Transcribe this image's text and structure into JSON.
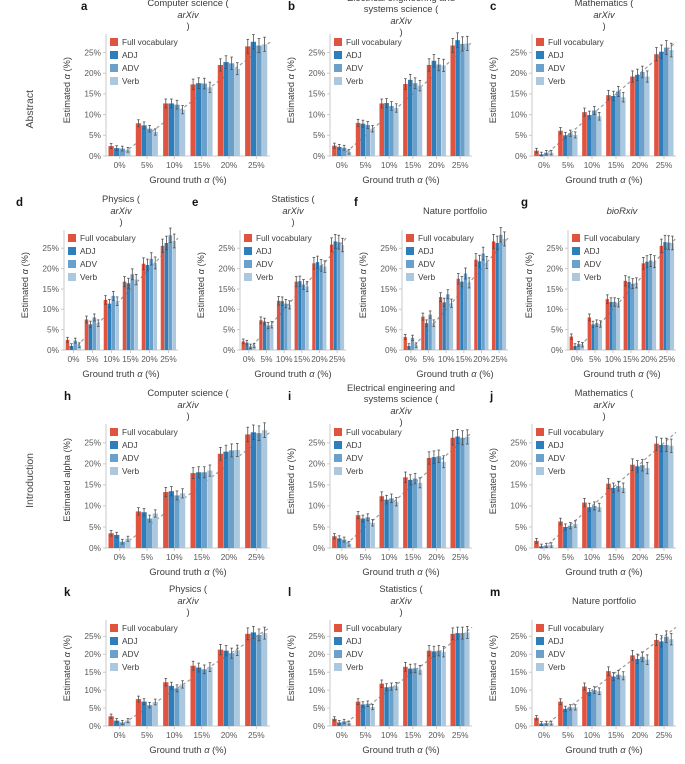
{
  "figure": {
    "row_labels": [
      "Abstract",
      "Introduction"
    ],
    "background": "#ffffff"
  },
  "legend": {
    "items": [
      {
        "label": "Full vocabulary",
        "color": "#e0533f"
      },
      {
        "label": "ADJ",
        "color": "#2e7ebc"
      },
      {
        "label": "ADV",
        "color": "#6ba0ca"
      },
      {
        "label": "Verb",
        "color": "#abc8de"
      }
    ]
  },
  "chart_data": {
    "type": "bar",
    "categories": [
      "0%",
      "5%",
      "10%",
      "15%",
      "20%",
      "25%"
    ],
    "xlabel": "Ground truth α (%)",
    "ylabel_default": "Estimated α (%)",
    "y_ticks": [
      "0%",
      "5%",
      "10%",
      "15%",
      "20%",
      "25%"
    ],
    "y_tick_values": [
      0,
      5,
      10,
      15,
      20,
      25
    ],
    "ylim": [
      0,
      29
    ],
    "grid": false,
    "legend_position": "upper-left-inside",
    "reference_line": "dashed gray diagonal y = x",
    "series_names": [
      "Full vocabulary",
      "ADJ",
      "ADV",
      "Verb"
    ],
    "series_colors": [
      "#e0533f",
      "#2e7ebc",
      "#6ba0ca",
      "#abc8de"
    ],
    "error_model": {
      "base": 1.0
    },
    "panels": [
      {
        "id": "a",
        "section": "Abstract",
        "title_lines": [
          "Computer science (arXiv)"
        ],
        "title_italic_word": "arXiv",
        "ylabel": "Estimated α (%)",
        "values": [
          [
            2.4,
            7.9,
            12.7,
            17.3,
            22.0,
            26.5
          ],
          [
            1.9,
            7.4,
            12.7,
            17.6,
            22.7,
            27.6
          ],
          [
            1.8,
            6.6,
            12.4,
            17.5,
            22.4,
            26.7
          ],
          [
            1.5,
            5.8,
            11.2,
            16.6,
            21.1,
            27.0
          ]
        ]
      },
      {
        "id": "b",
        "section": "Abstract",
        "title_lines": [
          "Electrical engineering and",
          "systems science (arXiv)"
        ],
        "title_italic_word": "arXiv",
        "ylabel": "Estimated α (%)",
        "values": [
          [
            2.5,
            8.0,
            12.7,
            17.4,
            22.0,
            26.7
          ],
          [
            2.2,
            7.8,
            12.8,
            18.4,
            23.0,
            28.0
          ],
          [
            2.0,
            7.5,
            12.1,
            17.6,
            22.1,
            27.1
          ],
          [
            1.0,
            6.6,
            11.6,
            17.0,
            21.9,
            27.2
          ]
        ]
      },
      {
        "id": "c",
        "section": "Abstract",
        "title_lines": [
          "Mathematics (arXiv)"
        ],
        "title_italic_word": "arXiv",
        "ylabel": "Estimated α (%)",
        "values": [
          [
            1.3,
            6.1,
            10.6,
            14.7,
            19.2,
            24.6
          ],
          [
            0.4,
            5.0,
            9.9,
            14.5,
            19.6,
            25.2
          ],
          [
            0.8,
            5.5,
            11.0,
            15.6,
            20.3,
            26.2
          ],
          [
            0.8,
            5.1,
            9.6,
            14.2,
            19.2,
            25.6
          ]
        ]
      },
      {
        "id": "d",
        "section": "Abstract",
        "title_lines": [
          "Physics (arXiv)"
        ],
        "title_italic_word": "arXiv",
        "ylabel": "Estimated α (%)",
        "values": [
          [
            2.5,
            7.5,
            12.3,
            16.8,
            21.2,
            25.6
          ],
          [
            1.0,
            6.3,
            11.4,
            16.4,
            20.9,
            26.3
          ],
          [
            2.3,
            8.0,
            13.3,
            18.6,
            22.4,
            28.2
          ],
          [
            1.2,
            6.6,
            12.0,
            17.3,
            21.4,
            26.8
          ]
        ]
      },
      {
        "id": "e",
        "section": "Abstract",
        "title_lines": [
          "Statistics (arXiv)"
        ],
        "title_italic_word": "arXiv",
        "ylabel": "Estimated α (%)",
        "values": [
          [
            2.1,
            7.3,
            12.1,
            16.8,
            21.3,
            25.9
          ],
          [
            1.8,
            7.0,
            12.0,
            16.9,
            21.6,
            26.7
          ],
          [
            0.9,
            6.0,
            11.4,
            16.1,
            20.8,
            26.5
          ],
          [
            1.1,
            6.2,
            11.1,
            15.6,
            20.5,
            25.8
          ]
        ]
      },
      {
        "id": "f",
        "section": "Abstract",
        "title_lines": [
          "Nature portfolio"
        ],
        "title_italic_word": null,
        "ylabel": "Estimated α (%)",
        "values": [
          [
            3.2,
            8.2,
            13.0,
            17.5,
            22.2,
            26.7
          ],
          [
            1.0,
            6.6,
            11.7,
            16.8,
            21.8,
            26.3
          ],
          [
            3.0,
            8.7,
            13.7,
            18.8,
            23.7,
            28.3
          ],
          [
            1.2,
            6.6,
            11.5,
            16.5,
            21.5,
            27.3
          ]
        ]
      },
      {
        "id": "g",
        "section": "Abstract",
        "title_lines": [
          "bioRxiv"
        ],
        "title_italic_word": "bioRxiv",
        "ylabel": "Estimated α (%)",
        "values": [
          [
            3.3,
            8.0,
            12.5,
            17.0,
            21.3,
            25.6
          ],
          [
            1.0,
            6.3,
            11.8,
            16.7,
            21.7,
            26.5
          ],
          [
            1.5,
            6.6,
            11.8,
            16.3,
            22.0,
            26.4
          ],
          [
            1.3,
            6.4,
            11.6,
            16.5,
            21.7,
            26.3
          ]
        ]
      },
      {
        "id": "h",
        "section": "Introduction",
        "title_lines": [
          "Computer science (arXiv)"
        ],
        "title_italic_word": "arXiv",
        "ylabel": "Estimated alpha (%)",
        "values": [
          [
            3.5,
            8.7,
            13.3,
            17.8,
            22.4,
            27.0
          ],
          [
            3.1,
            8.5,
            13.5,
            18.0,
            22.9,
            27.5
          ],
          [
            1.5,
            7.0,
            12.5,
            18.0,
            23.2,
            27.3
          ],
          [
            2.2,
            8.2,
            13.0,
            18.4,
            23.3,
            28.0
          ]
        ]
      },
      {
        "id": "i",
        "section": "Introduction",
        "title_lines": [
          "Electrical engineering and",
          "systems science (arXiv)"
        ],
        "title_italic_word": "arXiv",
        "ylabel": "Estimated α (%)",
        "values": [
          [
            2.8,
            7.8,
            12.3,
            16.8,
            21.4,
            26.2
          ],
          [
            2.3,
            7.0,
            11.5,
            16.2,
            21.6,
            26.5
          ],
          [
            2.0,
            7.3,
            11.8,
            16.5,
            21.8,
            26.2
          ],
          [
            1.0,
            6.0,
            11.0,
            15.5,
            20.5,
            26.4
          ]
        ]
      },
      {
        "id": "j",
        "section": "Introduction",
        "title_lines": [
          "Mathematics (arXiv)"
        ],
        "title_italic_word": "arXiv",
        "ylabel": "Estimated α (%)",
        "values": [
          [
            1.7,
            6.3,
            10.8,
            15.3,
            19.8,
            24.8
          ],
          [
            0.4,
            5.0,
            9.7,
            14.3,
            19.4,
            24.5
          ],
          [
            0.6,
            5.3,
            10.0,
            14.7,
            19.7,
            24.5
          ],
          [
            0.7,
            5.7,
            9.7,
            14.3,
            19.0,
            24.3
          ]
        ]
      },
      {
        "id": "k",
        "section": "Introduction",
        "title_lines": [
          "Physics (arXiv)"
        ],
        "title_italic_word": "arXiv",
        "ylabel": "Estimated α (%)",
        "values": [
          [
            2.7,
            7.5,
            12.2,
            16.8,
            21.3,
            25.7
          ],
          [
            1.5,
            6.8,
            11.2,
            16.3,
            21.0,
            26.1
          ],
          [
            1.0,
            5.8,
            10.5,
            15.8,
            20.3,
            25.4
          ],
          [
            1.5,
            6.7,
            11.6,
            16.4,
            21.1,
            25.9
          ]
        ]
      },
      {
        "id": "l",
        "section": "Introduction",
        "title_lines": [
          "Statistics (arXiv)"
        ],
        "title_italic_word": "arXiv",
        "ylabel": "Estimated α (%)",
        "values": [
          [
            2.0,
            6.8,
            11.8,
            16.5,
            21.0,
            25.7
          ],
          [
            1.0,
            6.0,
            10.8,
            16.0,
            20.8,
            25.9
          ],
          [
            1.3,
            6.2,
            11.0,
            16.1,
            21.0,
            25.9
          ],
          [
            0.8,
            5.3,
            11.1,
            15.7,
            20.7,
            26.1
          ]
        ]
      },
      {
        "id": "m",
        "section": "Introduction",
        "title_lines": [
          "Nature portfolio"
        ],
        "title_italic_word": null,
        "ylabel": "Estimated α (%)",
        "values": [
          [
            2.3,
            6.8,
            11.0,
            15.3,
            19.7,
            24.0
          ],
          [
            0.7,
            4.8,
            9.5,
            13.8,
            18.7,
            23.6
          ],
          [
            0.8,
            5.2,
            10.0,
            14.3,
            19.3,
            24.9
          ],
          [
            0.8,
            5.2,
            9.7,
            14.0,
            18.5,
            24.2
          ]
        ]
      }
    ]
  },
  "style_colors": {
    "axis_spine": "#c9c9c9",
    "tick_text": "#595959",
    "diagonal_line": "#9b9b9b",
    "error_bar": "#4f4f4f"
  }
}
